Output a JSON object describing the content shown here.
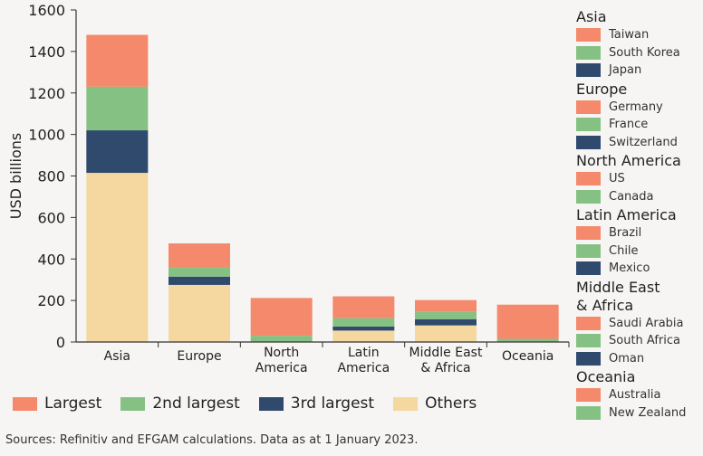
{
  "colors": {
    "largest": "#f4896b",
    "second": "#86c184",
    "third": "#2f4a6d",
    "others": "#f4d8a0",
    "axis": "#333333"
  },
  "chart_data": {
    "type": "bar",
    "stacked": true,
    "ylabel": "USD billions",
    "ylim": [
      0,
      1600
    ],
    "yticks": [
      0,
      200,
      400,
      600,
      800,
      1000,
      1200,
      1400,
      1600
    ],
    "categories": [
      "Asia",
      "Europe",
      "North America",
      "Latin America",
      "Middle East & Africa",
      "Oceania"
    ],
    "category_lines": [
      [
        "Asia"
      ],
      [
        "Europe"
      ],
      [
        "North",
        "America"
      ],
      [
        "Latin",
        "America"
      ],
      [
        "Middle East",
        "& Africa"
      ],
      [
        "Oceania"
      ]
    ],
    "series": [
      {
        "name": "Others",
        "key": "others",
        "values": [
          815,
          275,
          0,
          55,
          80,
          0
        ]
      },
      {
        "name": "3rd largest",
        "key": "third",
        "values": [
          205,
          40,
          0,
          20,
          30,
          0
        ]
      },
      {
        "name": "2nd largest",
        "key": "second",
        "values": [
          210,
          45,
          30,
          40,
          35,
          15
        ]
      },
      {
        "name": "Largest",
        "key": "largest",
        "values": [
          250,
          115,
          182,
          105,
          57,
          165
        ]
      }
    ]
  },
  "legend_bottom": [
    {
      "label": "Largest",
      "key": "largest"
    },
    {
      "label": "2nd largest",
      "key": "second"
    },
    {
      "label": "3rd largest",
      "key": "third"
    },
    {
      "label": "Others",
      "key": "others"
    }
  ],
  "legend_side": [
    {
      "title": "Asia",
      "items": [
        {
          "label": "Taiwan",
          "key": "largest"
        },
        {
          "label": "South Korea",
          "key": "second"
        },
        {
          "label": "Japan",
          "key": "third"
        }
      ]
    },
    {
      "title": "Europe",
      "items": [
        {
          "label": "Germany",
          "key": "largest"
        },
        {
          "label": "France",
          "key": "second"
        },
        {
          "label": "Switzerland",
          "key": "third"
        }
      ]
    },
    {
      "title": "North America",
      "items": [
        {
          "label": "US",
          "key": "largest"
        },
        {
          "label": "Canada",
          "key": "second"
        }
      ]
    },
    {
      "title": "Latin America",
      "items": [
        {
          "label": "Brazil",
          "key": "largest"
        },
        {
          "label": "Chile",
          "key": "second"
        },
        {
          "label": "Mexico",
          "key": "third"
        }
      ]
    },
    {
      "title": "Middle East & Africa",
      "title_lines": [
        "Middle East",
        "& Africa"
      ],
      "items": [
        {
          "label": "Saudi Arabia",
          "key": "largest"
        },
        {
          "label": "South Africa",
          "key": "second"
        },
        {
          "label": "Oman",
          "key": "third"
        }
      ]
    },
    {
      "title": "Oceania",
      "items": [
        {
          "label": "Australia",
          "key": "largest"
        },
        {
          "label": "New Zealand",
          "key": "second"
        }
      ]
    }
  ],
  "source": "Sources: Refinitiv and EFGAM calculations. Data as at 1 January 2023."
}
